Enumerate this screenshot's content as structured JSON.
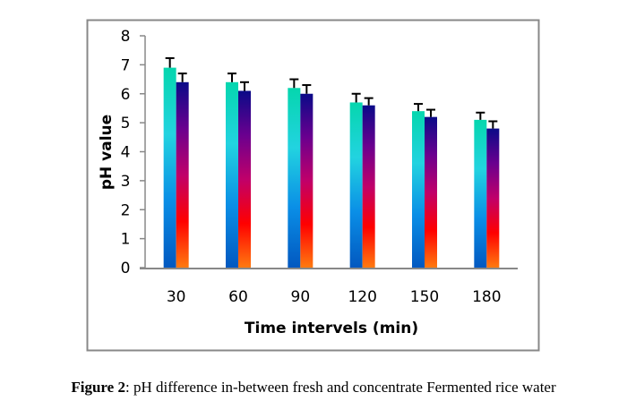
{
  "chart_data": {
    "type": "bar",
    "title": "",
    "xlabel": "Time intervels (min)",
    "ylabel": "pH value",
    "categories": [
      "30",
      "60",
      "90",
      "120",
      "150",
      "180"
    ],
    "series": [
      {
        "values": [
          6.9,
          6.4,
          6.2,
          5.7,
          5.4,
          5.1
        ],
        "errors": [
          0.33,
          0.3,
          0.3,
          0.3,
          0.25,
          0.25
        ],
        "gradient": [
          "#05d6ae",
          "#22d3e0",
          "#0a8ee6",
          "#0258c0"
        ]
      },
      {
        "values": [
          6.4,
          6.1,
          6.0,
          5.6,
          5.2,
          4.8
        ],
        "errors": [
          0.3,
          0.3,
          0.3,
          0.25,
          0.25,
          0.25
        ],
        "gradient": [
          "#0a0a88",
          "#6a008f",
          "#c0006a",
          "#ff0000",
          "#ff7a10"
        ]
      }
    ],
    "ylim": [
      0,
      8
    ],
    "yticks": [
      "0",
      "1",
      "2",
      "3",
      "4",
      "5",
      "6",
      "7",
      "8"
    ],
    "grid": false,
    "legend": "none"
  },
  "caption": {
    "label": "Figure 2",
    "text": ": pH difference in-between fresh and concentrate Fermented rice water"
  }
}
